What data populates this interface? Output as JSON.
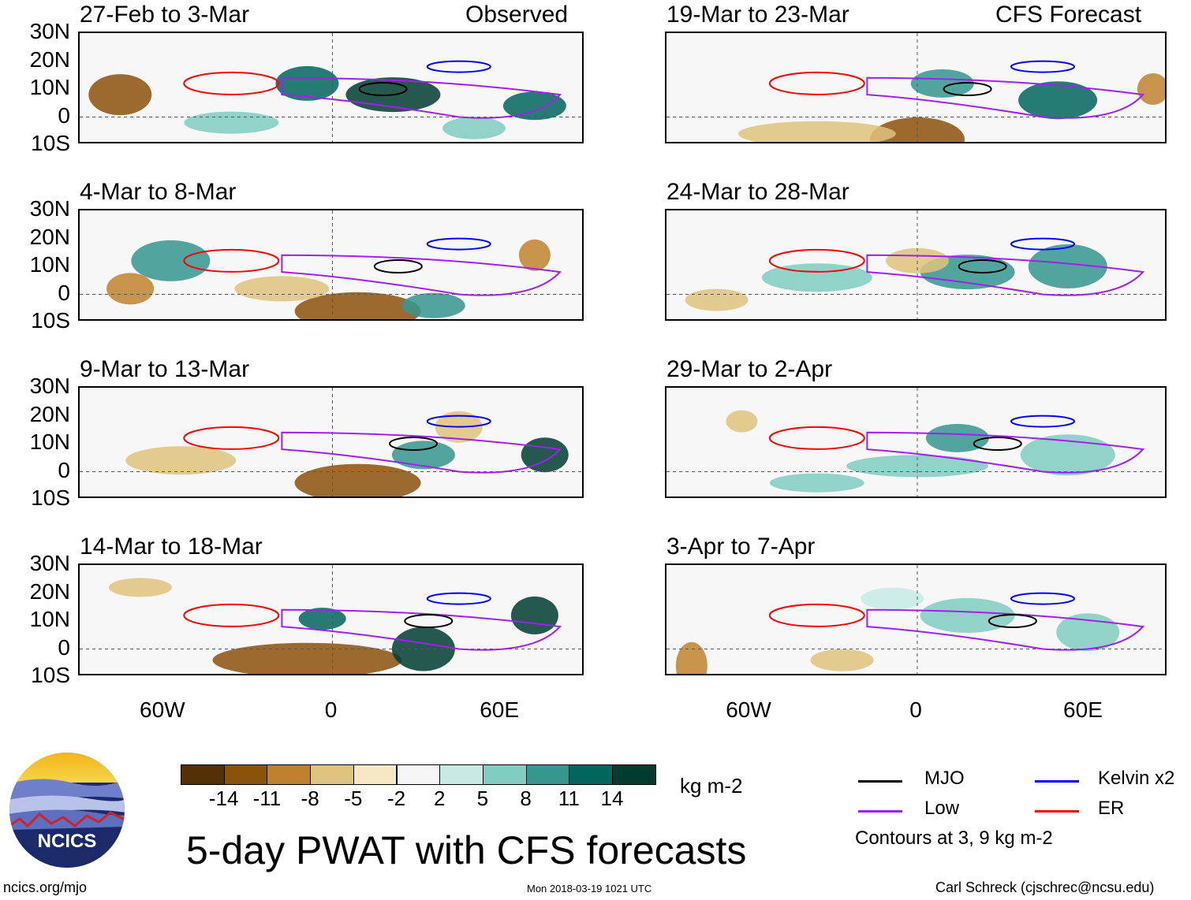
{
  "header": {
    "left_label": "Observed",
    "right_label": "CFS Forecast"
  },
  "panels": [
    {
      "title": "27-Feb to 3-Mar"
    },
    {
      "title": "4-Mar to 8-Mar"
    },
    {
      "title": "9-Mar to 13-Mar"
    },
    {
      "title": "14-Mar to 18-Mar"
    },
    {
      "title": "19-Mar to 23-Mar"
    },
    {
      "title": "24-Mar to 28-Mar"
    },
    {
      "title": "29-Mar to 2-Apr"
    },
    {
      "title": "3-Apr to 7-Apr"
    }
  ],
  "axes": {
    "lat_labels": [
      "30N",
      "20N",
      "10N",
      "0",
      "10S"
    ],
    "lon_labels": [
      "60W",
      "0",
      "60E"
    ]
  },
  "colorbar": {
    "labels": [
      "-14",
      "-11",
      "-8",
      "-5",
      "-2",
      "2",
      "5",
      "8",
      "11",
      "14"
    ],
    "colors": [
      "#543005",
      "#8c510a",
      "#bf812d",
      "#dfc27d",
      "#f6e8c3",
      "#f5f5f5",
      "#c7eae5",
      "#80cdc1",
      "#35978f",
      "#01665e",
      "#003c30"
    ],
    "unit": "kg m-2"
  },
  "legend": {
    "items": [
      {
        "label": "MJO",
        "color": "#000000"
      },
      {
        "label": "Kelvin x2",
        "color": "#0000ff"
      },
      {
        "label": "Low",
        "color": "#a020f0"
      },
      {
        "label": "ER",
        "color": "#ff0000"
      }
    ],
    "note": "Contours at 3, 9 kg m-2"
  },
  "title": "5-day PWAT with CFS forecasts",
  "logo": {
    "text": "NCICS"
  },
  "footer": {
    "url": "ncics.org/mjo",
    "timestamp": "Mon 2018-03-19 1021 UTC",
    "credit": "Carl Schreck (cjschrec@ncsu.edu)"
  }
}
